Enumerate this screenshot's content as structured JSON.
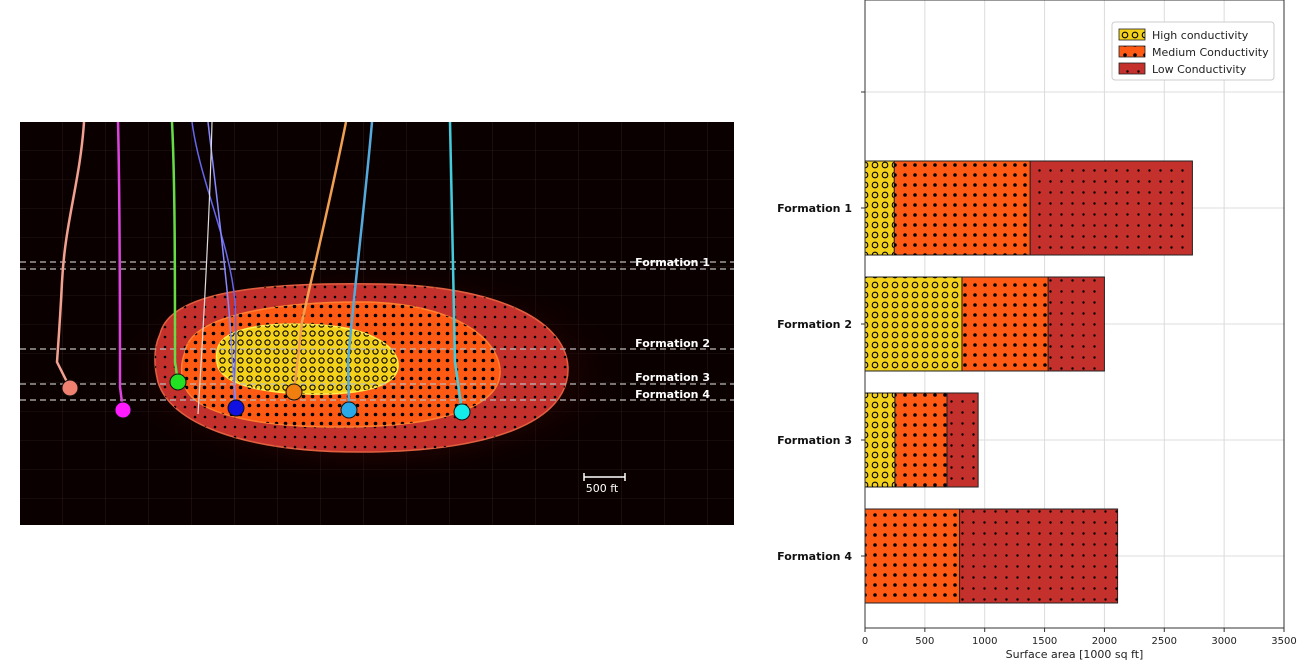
{
  "left_panel": {
    "formation_labels": [
      "Formation 1",
      "Formation 2",
      "Formation 3",
      "Formation 4"
    ],
    "scale_bar_label": "500 ft",
    "well_colors": [
      "#f08070",
      "#ff1aff",
      "#22e022",
      "#1010e0",
      "#f07f10",
      "#2aa8e8",
      "#14ecec"
    ]
  },
  "chart_data": {
    "type": "bar",
    "orientation": "horizontal",
    "stacked": true,
    "categories": [
      "Formation 1",
      "Formation 2",
      "Formation 3",
      "Formation 4"
    ],
    "series": [
      {
        "name": "High conductivity",
        "values": [
          245,
          810,
          250,
          0
        ],
        "color": "#f5d21a",
        "pattern": "rings"
      },
      {
        "name": "Medium Conductivity",
        "values": [
          1135,
          720,
          435,
          790
        ],
        "color": "#ff5a14",
        "pattern": "dots-dark"
      },
      {
        "name": "Low Conductivity",
        "values": [
          1355,
          470,
          260,
          1320
        ],
        "color": "#c4302b",
        "pattern": "dots-small"
      }
    ],
    "xlabel": "Surface area [1000 sq ft]",
    "ylabel": "",
    "xlim": [
      0,
      3500
    ],
    "xticks": [
      "0",
      "500",
      "1000",
      "1500",
      "2000",
      "2500",
      "3000",
      "3500"
    ],
    "grid": true,
    "legend_position": "top-right"
  }
}
